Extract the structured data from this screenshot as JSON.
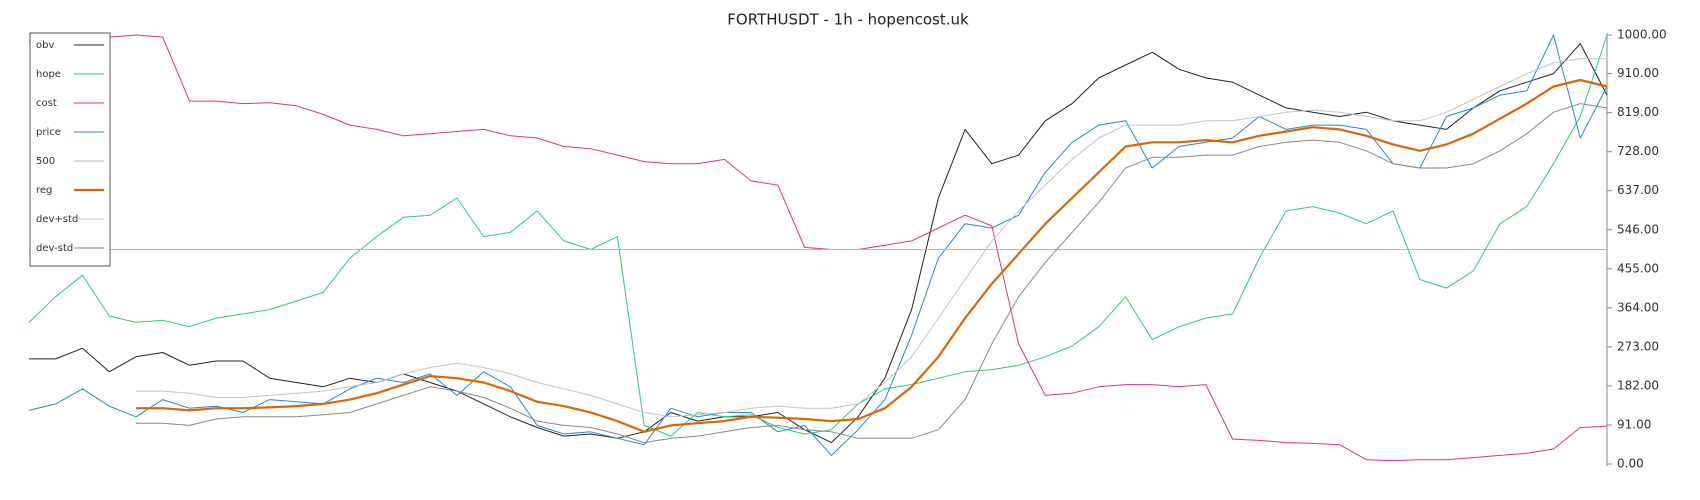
{
  "chart_data": {
    "type": "line",
    "title": "FORTHUSDT - 1h - hopencost.uk",
    "ylim": [
      0,
      1000
    ],
    "yaxis_side": "right",
    "legend": "upper left",
    "yticks": [
      {
        "value": 0,
        "label": "0.00"
      },
      {
        "value": 91,
        "label": "91.00"
      },
      {
        "value": 182,
        "label": "182.00"
      },
      {
        "value": 273,
        "label": "273.00"
      },
      {
        "value": 364,
        "label": "364.00"
      },
      {
        "value": 455,
        "label": "455.00"
      },
      {
        "value": 546,
        "label": "546.00"
      },
      {
        "value": 637,
        "label": "637.00"
      },
      {
        "value": 728,
        "label": "728.00"
      },
      {
        "value": 819,
        "label": "819.00"
      },
      {
        "value": 910,
        "label": "910.00"
      },
      {
        "value": 1000,
        "label": "1000.00"
      }
    ],
    "series": [
      {
        "name": "obv",
        "color": "#222222",
        "linewidth": 1,
        "values": [
          245,
          245,
          270,
          215,
          250,
          260,
          230,
          240,
          240,
          200,
          190,
          180,
          200,
          190,
          210,
          190,
          170,
          140,
          110,
          85,
          65,
          70,
          60,
          75,
          120,
          100,
          110,
          110,
          120,
          80,
          50,
          110,
          200,
          360,
          620,
          780,
          700,
          720,
          800,
          840,
          900,
          930,
          960,
          920,
          900,
          890,
          860,
          830,
          820,
          810,
          820,
          800,
          790,
          780,
          830,
          870,
          890,
          910,
          980,
          860
        ]
      },
      {
        "name": "hope",
        "color": "#2ecc71",
        "linewidth": 1,
        "values": [
          330,
          390,
          440,
          345,
          330,
          335,
          320,
          340,
          350,
          360,
          380,
          400,
          480,
          530,
          575,
          580,
          620,
          530,
          540,
          590,
          520,
          500,
          530,
          90,
          65,
          120,
          110,
          115,
          85,
          70,
          80,
          140,
          175,
          185,
          200,
          215,
          220,
          230,
          250,
          275,
          320,
          390,
          290,
          320,
          340,
          350,
          480,
          590,
          600,
          585,
          560,
          590,
          430,
          410,
          450,
          560,
          600,
          700,
          810,
          1000
        ]
      },
      {
        "name": "cost",
        "color": "#e0338a",
        "linewidth": 1,
        "values": [
          985,
          990,
          990,
          995,
          1000,
          995,
          846,
          846,
          840,
          842,
          835,
          815,
          790,
          780,
          765,
          770,
          775,
          780,
          765,
          760,
          740,
          735,
          720,
          705,
          700,
          700,
          710,
          660,
          650,
          505,
          500,
          500,
          510,
          520,
          550,
          580,
          555,
          280,
          160,
          165,
          180,
          185,
          185,
          180,
          185,
          58,
          55,
          50,
          48,
          45,
          10,
          8,
          10,
          10,
          15,
          20,
          25,
          35,
          85,
          88
        ]
      },
      {
        "name": "price",
        "color": "#2a86d6",
        "linewidth": 1,
        "values": [
          125,
          140,
          175,
          135,
          110,
          150,
          130,
          135,
          120,
          150,
          145,
          140,
          175,
          200,
          190,
          210,
          160,
          215,
          180,
          90,
          70,
          75,
          60,
          45,
          130,
          110,
          120,
          120,
          75,
          90,
          20,
          80,
          150,
          300,
          480,
          560,
          550,
          580,
          680,
          750,
          790,
          800,
          690,
          740,
          750,
          760,
          810,
          780,
          790,
          790,
          780,
          700,
          690,
          810,
          830,
          860,
          870,
          1000,
          760,
          880
        ]
      },
      {
        "name": "500",
        "color": "#b8b8b8",
        "linewidth": 1,
        "values": [
          500,
          500,
          500,
          500,
          500,
          500,
          500,
          500,
          500,
          500,
          500,
          500,
          500,
          500,
          500,
          500,
          500,
          500,
          500,
          500,
          500,
          500,
          500,
          500,
          500,
          500,
          500,
          500,
          500,
          500,
          500,
          500,
          500,
          500,
          500,
          500,
          500,
          500,
          500,
          500,
          500,
          500,
          500,
          500,
          500,
          500,
          500,
          500,
          500,
          500,
          500,
          500,
          500,
          500,
          500,
          500,
          500,
          500,
          500,
          500
        ]
      },
      {
        "name": "reg",
        "color": "#d9660a",
        "linewidth": 2.2,
        "values": [
          null,
          null,
          null,
          null,
          130,
          130,
          125,
          130,
          130,
          132,
          135,
          140,
          150,
          165,
          185,
          205,
          200,
          190,
          170,
          145,
          135,
          120,
          100,
          75,
          90,
          95,
          100,
          110,
          108,
          105,
          100,
          105,
          130,
          180,
          250,
          340,
          420,
          490,
          560,
          620,
          680,
          740,
          750,
          750,
          755,
          750,
          765,
          775,
          785,
          780,
          765,
          745,
          730,
          745,
          770,
          805,
          840,
          880,
          895,
          880
        ]
      },
      {
        "name": "dev+std",
        "color": "#c4c4c4",
        "linewidth": 1,
        "values": [
          null,
          null,
          null,
          null,
          170,
          170,
          165,
          155,
          155,
          160,
          165,
          170,
          180,
          190,
          210,
          225,
          235,
          225,
          210,
          190,
          175,
          160,
          140,
          120,
          110,
          115,
          120,
          130,
          135,
          130,
          130,
          140,
          190,
          250,
          340,
          430,
          520,
          590,
          650,
          710,
          760,
          790,
          790,
          790,
          800,
          800,
          810,
          820,
          825,
          820,
          810,
          800,
          800,
          820,
          850,
          880,
          910,
          935,
          945,
          945
        ]
      },
      {
        "name": "dev-std",
        "color": "#8a8a8a",
        "linewidth": 1,
        "values": [
          null,
          null,
          null,
          null,
          95,
          95,
          90,
          105,
          110,
          110,
          110,
          115,
          120,
          140,
          160,
          180,
          170,
          155,
          130,
          100,
          90,
          85,
          70,
          50,
          60,
          65,
          75,
          85,
          90,
          80,
          75,
          60,
          60,
          60,
          80,
          150,
          280,
          390,
          470,
          540,
          610,
          690,
          715,
          715,
          720,
          720,
          740,
          750,
          755,
          750,
          730,
          700,
          690,
          690,
          700,
          730,
          770,
          820,
          840,
          830
        ]
      }
    ]
  }
}
